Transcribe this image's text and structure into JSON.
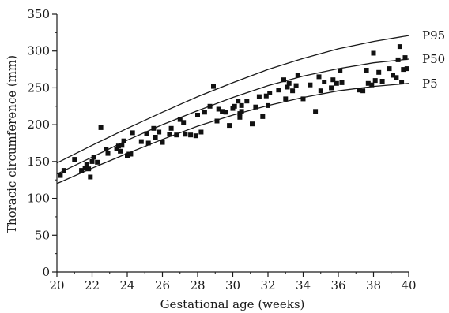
{
  "chart_data": {
    "type": "scatter",
    "xlabel": "Gestational age (weeks)",
    "ylabel": "Thoracic circumference (mm)",
    "xlim": [
      20,
      40
    ],
    "ylim": [
      0,
      350
    ],
    "xticks": [
      20,
      22,
      24,
      26,
      28,
      30,
      32,
      34,
      36,
      38,
      40
    ],
    "yticks": [
      0,
      50,
      100,
      150,
      200,
      250,
      300,
      350
    ],
    "grid": false,
    "points": [
      [
        20.2,
        131
      ],
      [
        20.4,
        138
      ],
      [
        21.0,
        153
      ],
      [
        21.4,
        138
      ],
      [
        21.6,
        141
      ],
      [
        21.7,
        146
      ],
      [
        21.8,
        140
      ],
      [
        21.9,
        129
      ],
      [
        22.0,
        150
      ],
      [
        22.1,
        156
      ],
      [
        22.3,
        149
      ],
      [
        22.5,
        196
      ],
      [
        22.8,
        167
      ],
      [
        22.9,
        161
      ],
      [
        23.4,
        167
      ],
      [
        23.5,
        171
      ],
      [
        23.6,
        164
      ],
      [
        23.7,
        172
      ],
      [
        23.8,
        178
      ],
      [
        24.0,
        158
      ],
      [
        24.1,
        160
      ],
      [
        24.2,
        160
      ],
      [
        24.3,
        189
      ],
      [
        24.8,
        177
      ],
      [
        25.1,
        188
      ],
      [
        25.2,
        175
      ],
      [
        25.5,
        195
      ],
      [
        25.6,
        183
      ],
      [
        25.8,
        190
      ],
      [
        26.0,
        176
      ],
      [
        26.4,
        187
      ],
      [
        26.5,
        195
      ],
      [
        26.8,
        186
      ],
      [
        27.0,
        207
      ],
      [
        27.2,
        203
      ],
      [
        27.3,
        187
      ],
      [
        27.6,
        186
      ],
      [
        27.9,
        185
      ],
      [
        28.0,
        213
      ],
      [
        28.2,
        190
      ],
      [
        28.4,
        217
      ],
      [
        28.7,
        225
      ],
      [
        28.9,
        252
      ],
      [
        29.1,
        205
      ],
      [
        29.2,
        221
      ],
      [
        29.4,
        218
      ],
      [
        29.6,
        217
      ],
      [
        29.8,
        199
      ],
      [
        30.0,
        222
      ],
      [
        30.1,
        225
      ],
      [
        30.3,
        232
      ],
      [
        30.4,
        215
      ],
      [
        30.4,
        210
      ],
      [
        30.5,
        218
      ],
      [
        30.5,
        226
      ],
      [
        30.8,
        232
      ],
      [
        31.1,
        201
      ],
      [
        31.3,
        224
      ],
      [
        31.5,
        238
      ],
      [
        31.7,
        211
      ],
      [
        31.9,
        239
      ],
      [
        32.0,
        226
      ],
      [
        32.1,
        243
      ],
      [
        32.6,
        247
      ],
      [
        32.9,
        261
      ],
      [
        33.0,
        235
      ],
      [
        33.1,
        251
      ],
      [
        33.2,
        256
      ],
      [
        33.4,
        246
      ],
      [
        33.6,
        253
      ],
      [
        33.7,
        267
      ],
      [
        34.0,
        235
      ],
      [
        34.4,
        254
      ],
      [
        34.7,
        218
      ],
      [
        34.9,
        265
      ],
      [
        35.0,
        246
      ],
      [
        35.2,
        258
      ],
      [
        35.6,
        250
      ],
      [
        35.7,
        261
      ],
      [
        35.9,
        256
      ],
      [
        36.1,
        273
      ],
      [
        36.2,
        257
      ],
      [
        37.2,
        247
      ],
      [
        37.4,
        246
      ],
      [
        37.6,
        274
      ],
      [
        37.7,
        256
      ],
      [
        37.9,
        254
      ],
      [
        38.0,
        297
      ],
      [
        38.1,
        260
      ],
      [
        38.3,
        271
      ],
      [
        38.5,
        259
      ],
      [
        38.9,
        276
      ],
      [
        39.1,
        267
      ],
      [
        39.3,
        264
      ],
      [
        39.4,
        288
      ],
      [
        39.5,
        306
      ],
      [
        39.6,
        258
      ],
      [
        39.7,
        275
      ],
      [
        39.8,
        291
      ],
      [
        39.9,
        276
      ]
    ],
    "curves": [
      {
        "name": "P95",
        "x": [
          20,
          22,
          24,
          26,
          28,
          30,
          32,
          34,
          36,
          38,
          40
        ],
        "y": [
          148,
          172,
          195,
          217,
          238,
          257,
          275,
          290,
          303,
          313,
          321
        ]
      },
      {
        "name": "P50",
        "x": [
          20,
          22,
          24,
          26,
          28,
          30,
          32,
          34,
          36,
          38,
          40
        ],
        "y": [
          133,
          156,
          179,
          200,
          219,
          237,
          253,
          266,
          276,
          284,
          289
        ]
      },
      {
        "name": "P5",
        "x": [
          20,
          22,
          24,
          26,
          28,
          30,
          32,
          34,
          36,
          38,
          40
        ],
        "y": [
          120,
          141,
          161,
          180,
          198,
          213,
          226,
          237,
          246,
          252,
          256
        ]
      }
    ]
  }
}
